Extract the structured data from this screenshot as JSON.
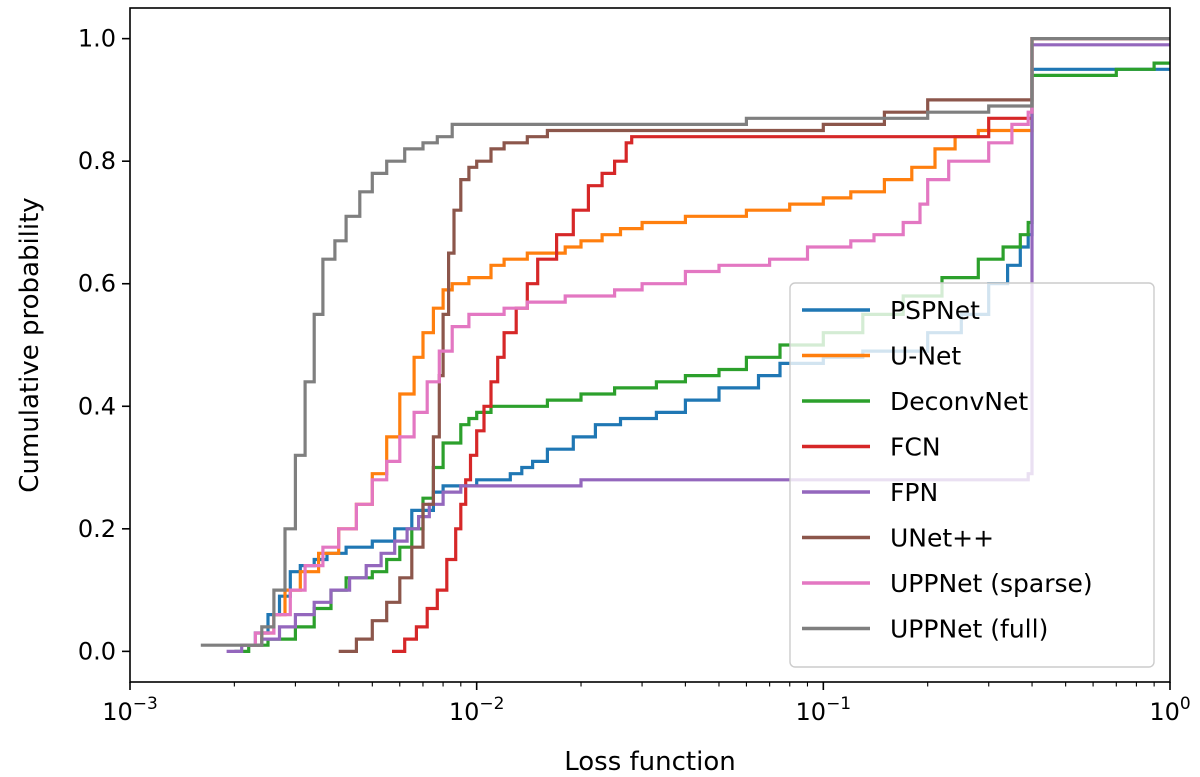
{
  "chart_data": {
    "type": "line",
    "xlabel": "Loss function",
    "ylabel": "Cumulative probability",
    "xscale": "log",
    "xlim": [
      0.001,
      1
    ],
    "ylim": [
      -0.05,
      1.05
    ],
    "xticks": [
      {
        "value": 0.001,
        "base": "10",
        "exp": "−3"
      },
      {
        "value": 0.01,
        "base": "10",
        "exp": "−2"
      },
      {
        "value": 0.1,
        "base": "10",
        "exp": "−1"
      },
      {
        "value": 1,
        "base": "10",
        "exp": "0"
      }
    ],
    "yticks": [
      {
        "value": 0.0,
        "label": "0.0"
      },
      {
        "value": 0.2,
        "label": "0.2"
      },
      {
        "value": 0.4,
        "label": "0.4"
      },
      {
        "value": 0.6,
        "label": "0.6"
      },
      {
        "value": 0.8,
        "label": "0.8"
      },
      {
        "value": 1.0,
        "label": "1.0"
      }
    ],
    "grid": false,
    "legend_position": "lower-right",
    "series": [
      {
        "name": "PSPNet",
        "color": "#1f77b4",
        "points": [
          [
            0.0021,
            0.01
          ],
          [
            0.0023,
            0.03
          ],
          [
            0.0025,
            0.06
          ],
          [
            0.0027,
            0.09
          ],
          [
            0.0029,
            0.13
          ],
          [
            0.0031,
            0.14
          ],
          [
            0.0034,
            0.15
          ],
          [
            0.0037,
            0.16
          ],
          [
            0.0042,
            0.17
          ],
          [
            0.005,
            0.18
          ],
          [
            0.0058,
            0.2
          ],
          [
            0.0065,
            0.23
          ],
          [
            0.0075,
            0.26
          ],
          [
            0.008,
            0.27
          ],
          [
            0.01,
            0.28
          ],
          [
            0.0125,
            0.29
          ],
          [
            0.0135,
            0.3
          ],
          [
            0.0145,
            0.31
          ],
          [
            0.016,
            0.33
          ],
          [
            0.019,
            0.35
          ],
          [
            0.022,
            0.37
          ],
          [
            0.026,
            0.38
          ],
          [
            0.033,
            0.39
          ],
          [
            0.04,
            0.41
          ],
          [
            0.05,
            0.43
          ],
          [
            0.065,
            0.45
          ],
          [
            0.075,
            0.47
          ],
          [
            0.1,
            0.48
          ],
          [
            0.13,
            0.49
          ],
          [
            0.2,
            0.52
          ],
          [
            0.25,
            0.55
          ],
          [
            0.3,
            0.6
          ],
          [
            0.34,
            0.63
          ],
          [
            0.37,
            0.66
          ],
          [
            0.39,
            0.68
          ],
          [
            0.4,
            0.95
          ],
          [
            1.0,
            0.95
          ]
        ]
      },
      {
        "name": "U-Net",
        "color": "#ff7f0e",
        "points": [
          [
            0.0022,
            0.01
          ],
          [
            0.0024,
            0.03
          ],
          [
            0.0026,
            0.06
          ],
          [
            0.0028,
            0.1
          ],
          [
            0.0031,
            0.13
          ],
          [
            0.0035,
            0.16
          ],
          [
            0.004,
            0.2
          ],
          [
            0.0045,
            0.24
          ],
          [
            0.005,
            0.29
          ],
          [
            0.0055,
            0.35
          ],
          [
            0.006,
            0.42
          ],
          [
            0.0066,
            0.48
          ],
          [
            0.007,
            0.52
          ],
          [
            0.0075,
            0.56
          ],
          [
            0.008,
            0.59
          ],
          [
            0.0085,
            0.6
          ],
          [
            0.0095,
            0.61
          ],
          [
            0.011,
            0.63
          ],
          [
            0.012,
            0.64
          ],
          [
            0.014,
            0.65
          ],
          [
            0.018,
            0.66
          ],
          [
            0.02,
            0.67
          ],
          [
            0.023,
            0.68
          ],
          [
            0.026,
            0.69
          ],
          [
            0.03,
            0.7
          ],
          [
            0.04,
            0.71
          ],
          [
            0.06,
            0.72
          ],
          [
            0.08,
            0.73
          ],
          [
            0.1,
            0.74
          ],
          [
            0.12,
            0.75
          ],
          [
            0.15,
            0.77
          ],
          [
            0.18,
            0.79
          ],
          [
            0.21,
            0.82
          ],
          [
            0.24,
            0.84
          ],
          [
            0.28,
            0.85
          ],
          [
            0.38,
            0.85
          ],
          [
            0.4,
            1.0
          ],
          [
            1.0,
            1.0
          ]
        ]
      },
      {
        "name": "DeconvNet",
        "color": "#2ca02c",
        "points": [
          [
            0.002,
            0.0
          ],
          [
            0.0022,
            0.01
          ],
          [
            0.0025,
            0.02
          ],
          [
            0.003,
            0.04
          ],
          [
            0.0034,
            0.07
          ],
          [
            0.0038,
            0.1
          ],
          [
            0.0042,
            0.12
          ],
          [
            0.005,
            0.13
          ],
          [
            0.0055,
            0.15
          ],
          [
            0.006,
            0.17
          ],
          [
            0.0065,
            0.2
          ],
          [
            0.007,
            0.25
          ],
          [
            0.0075,
            0.3
          ],
          [
            0.008,
            0.34
          ],
          [
            0.009,
            0.37
          ],
          [
            0.0095,
            0.38
          ],
          [
            0.01,
            0.39
          ],
          [
            0.011,
            0.4
          ],
          [
            0.016,
            0.41
          ],
          [
            0.02,
            0.42
          ],
          [
            0.025,
            0.43
          ],
          [
            0.033,
            0.44
          ],
          [
            0.04,
            0.45
          ],
          [
            0.05,
            0.46
          ],
          [
            0.06,
            0.48
          ],
          [
            0.075,
            0.5
          ],
          [
            0.1,
            0.52
          ],
          [
            0.13,
            0.55
          ],
          [
            0.17,
            0.58
          ],
          [
            0.22,
            0.61
          ],
          [
            0.28,
            0.64
          ],
          [
            0.33,
            0.66
          ],
          [
            0.37,
            0.68
          ],
          [
            0.39,
            0.7
          ],
          [
            0.4,
            0.94
          ],
          [
            0.5,
            0.94
          ],
          [
            0.7,
            0.95
          ],
          [
            0.9,
            0.96
          ],
          [
            1.0,
            0.96
          ]
        ]
      },
      {
        "name": "FCN",
        "color": "#d62728",
        "points": [
          [
            0.0057,
            0.0
          ],
          [
            0.0062,
            0.02
          ],
          [
            0.0067,
            0.04
          ],
          [
            0.0072,
            0.07
          ],
          [
            0.0077,
            0.1
          ],
          [
            0.0082,
            0.15
          ],
          [
            0.0087,
            0.2
          ],
          [
            0.009,
            0.24
          ],
          [
            0.0093,
            0.28
          ],
          [
            0.0096,
            0.32
          ],
          [
            0.01,
            0.36
          ],
          [
            0.0105,
            0.4
          ],
          [
            0.011,
            0.44
          ],
          [
            0.0115,
            0.48
          ],
          [
            0.012,
            0.52
          ],
          [
            0.013,
            0.56
          ],
          [
            0.014,
            0.6
          ],
          [
            0.015,
            0.64
          ],
          [
            0.017,
            0.68
          ],
          [
            0.019,
            0.72
          ],
          [
            0.021,
            0.76
          ],
          [
            0.023,
            0.78
          ],
          [
            0.025,
            0.8
          ],
          [
            0.027,
            0.83
          ],
          [
            0.028,
            0.84
          ],
          [
            0.3,
            0.87
          ],
          [
            0.4,
            0.87
          ]
        ]
      },
      {
        "name": "FPN",
        "color": "#9467bd",
        "points": [
          [
            0.0019,
            0.0
          ],
          [
            0.0021,
            0.01
          ],
          [
            0.0024,
            0.02
          ],
          [
            0.0027,
            0.04
          ],
          [
            0.003,
            0.06
          ],
          [
            0.0034,
            0.08
          ],
          [
            0.0038,
            0.1
          ],
          [
            0.0043,
            0.12
          ],
          [
            0.0048,
            0.14
          ],
          [
            0.0053,
            0.16
          ],
          [
            0.0058,
            0.18
          ],
          [
            0.0063,
            0.2
          ],
          [
            0.0068,
            0.22
          ],
          [
            0.0073,
            0.24
          ],
          [
            0.008,
            0.26
          ],
          [
            0.009,
            0.27
          ],
          [
            0.015,
            0.27
          ],
          [
            0.02,
            0.28
          ],
          [
            0.37,
            0.28
          ],
          [
            0.39,
            0.29
          ],
          [
            0.4,
            0.99
          ],
          [
            1.0,
            0.99
          ]
        ]
      },
      {
        "name": "UNet++",
        "color": "#8c564b",
        "points": [
          [
            0.004,
            0.0
          ],
          [
            0.0045,
            0.02
          ],
          [
            0.005,
            0.05
          ],
          [
            0.0055,
            0.08
          ],
          [
            0.006,
            0.12
          ],
          [
            0.0065,
            0.17
          ],
          [
            0.007,
            0.24
          ],
          [
            0.0075,
            0.35
          ],
          [
            0.0078,
            0.45
          ],
          [
            0.008,
            0.55
          ],
          [
            0.0083,
            0.65
          ],
          [
            0.0086,
            0.72
          ],
          [
            0.009,
            0.77
          ],
          [
            0.0095,
            0.79
          ],
          [
            0.01,
            0.8
          ],
          [
            0.011,
            0.82
          ],
          [
            0.012,
            0.83
          ],
          [
            0.014,
            0.84
          ],
          [
            0.016,
            0.85
          ],
          [
            0.1,
            0.86
          ],
          [
            0.15,
            0.88
          ],
          [
            0.2,
            0.9
          ],
          [
            0.4,
            0.9
          ],
          [
            0.4,
            1.0
          ],
          [
            1.0,
            1.0
          ]
        ]
      },
      {
        "name": "UPPNet (sparse)",
        "color": "#e377c2",
        "points": [
          [
            0.0021,
            0.01
          ],
          [
            0.0023,
            0.03
          ],
          [
            0.0026,
            0.06
          ],
          [
            0.0029,
            0.1
          ],
          [
            0.0032,
            0.14
          ],
          [
            0.0036,
            0.17
          ],
          [
            0.004,
            0.2
          ],
          [
            0.0045,
            0.24
          ],
          [
            0.005,
            0.28
          ],
          [
            0.0055,
            0.31
          ],
          [
            0.006,
            0.35
          ],
          [
            0.0066,
            0.39
          ],
          [
            0.0072,
            0.44
          ],
          [
            0.0078,
            0.49
          ],
          [
            0.0085,
            0.53
          ],
          [
            0.0095,
            0.55
          ],
          [
            0.012,
            0.56
          ],
          [
            0.014,
            0.57
          ],
          [
            0.018,
            0.58
          ],
          [
            0.025,
            0.59
          ],
          [
            0.03,
            0.6
          ],
          [
            0.04,
            0.62
          ],
          [
            0.05,
            0.63
          ],
          [
            0.07,
            0.64
          ],
          [
            0.09,
            0.66
          ],
          [
            0.12,
            0.67
          ],
          [
            0.14,
            0.68
          ],
          [
            0.17,
            0.7
          ],
          [
            0.19,
            0.73
          ],
          [
            0.2,
            0.77
          ],
          [
            0.23,
            0.8
          ],
          [
            0.3,
            0.83
          ],
          [
            0.35,
            0.86
          ],
          [
            0.39,
            0.88
          ],
          [
            0.4,
            1.0
          ],
          [
            1.0,
            1.0
          ]
        ]
      },
      {
        "name": "UPPNet (full)",
        "color": "#7f7f7f",
        "points": [
          [
            0.0016,
            0.01
          ],
          [
            0.0022,
            0.01
          ],
          [
            0.0024,
            0.04
          ],
          [
            0.0026,
            0.1
          ],
          [
            0.0028,
            0.2
          ],
          [
            0.003,
            0.32
          ],
          [
            0.0032,
            0.44
          ],
          [
            0.0034,
            0.55
          ],
          [
            0.0036,
            0.64
          ],
          [
            0.0039,
            0.67
          ],
          [
            0.0042,
            0.71
          ],
          [
            0.0046,
            0.75
          ],
          [
            0.005,
            0.78
          ],
          [
            0.0055,
            0.8
          ],
          [
            0.0062,
            0.82
          ],
          [
            0.007,
            0.83
          ],
          [
            0.0077,
            0.84
          ],
          [
            0.0085,
            0.86
          ],
          [
            0.05,
            0.86
          ],
          [
            0.06,
            0.87
          ],
          [
            0.2,
            0.88
          ],
          [
            0.3,
            0.89
          ],
          [
            0.4,
            0.89
          ],
          [
            0.4,
            1.0
          ],
          [
            1.0,
            1.0
          ]
        ]
      }
    ]
  }
}
